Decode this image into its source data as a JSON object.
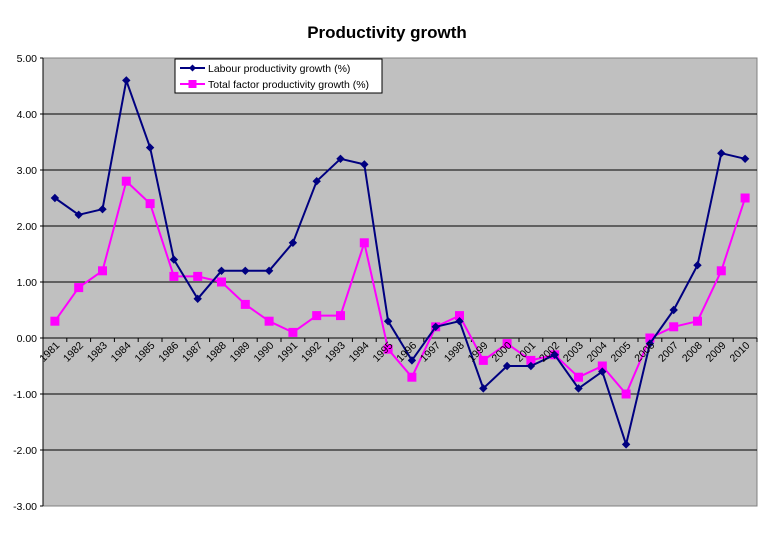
{
  "chart_data": {
    "type": "line",
    "title": "Productivity growth",
    "xlabel": "",
    "ylabel": "",
    "ylim": [
      -3.0,
      5.0
    ],
    "ytick_step": 1.0,
    "ytick_labels": [
      "-3.00",
      "-2.00",
      "-1.00",
      "0.00",
      "1.00",
      "2.00",
      "3.00",
      "4.00",
      "5.00"
    ],
    "grid": true,
    "legend_position": "top-left",
    "categories": [
      "1981",
      "1982",
      "1983",
      "1984",
      "1985",
      "1986",
      "1987",
      "1988",
      "1989",
      "1990",
      "1991",
      "1992",
      "1993",
      "1994",
      "1995",
      "1996",
      "1997",
      "1998",
      "1999",
      "2000",
      "2001",
      "2002",
      "2003",
      "2004",
      "2005",
      "2006",
      "2007",
      "2008",
      "2009",
      "2010"
    ],
    "series": [
      {
        "name": "Labour productivity growth (%)",
        "color": "#000080",
        "marker": "diamond",
        "values": [
          2.5,
          2.2,
          2.3,
          4.6,
          3.4,
          1.4,
          0.7,
          1.2,
          1.2,
          1.2,
          1.7,
          2.8,
          3.2,
          3.1,
          0.3,
          -0.4,
          0.2,
          0.3,
          -0.9,
          -0.5,
          -0.5,
          -0.3,
          -0.9,
          -0.6,
          -1.9,
          -0.1,
          0.5,
          1.3,
          3.3,
          3.2
        ]
      },
      {
        "name": "Total factor productivity growth (%)",
        "color": "#ff00ff",
        "marker": "square",
        "values": [
          0.3,
          0.9,
          1.2,
          2.8,
          2.4,
          1.1,
          1.1,
          1.0,
          0.6,
          0.3,
          0.1,
          0.4,
          0.4,
          1.7,
          -0.2,
          -0.7,
          0.2,
          0.4,
          -0.4,
          -0.1,
          -0.4,
          -0.3,
          -0.7,
          -0.5,
          -1.0,
          0.0,
          0.2,
          0.3,
          1.2,
          2.5
        ]
      }
    ]
  },
  "colors": {
    "plot_background": "#c0c0c0",
    "gridline": "#000000"
  }
}
